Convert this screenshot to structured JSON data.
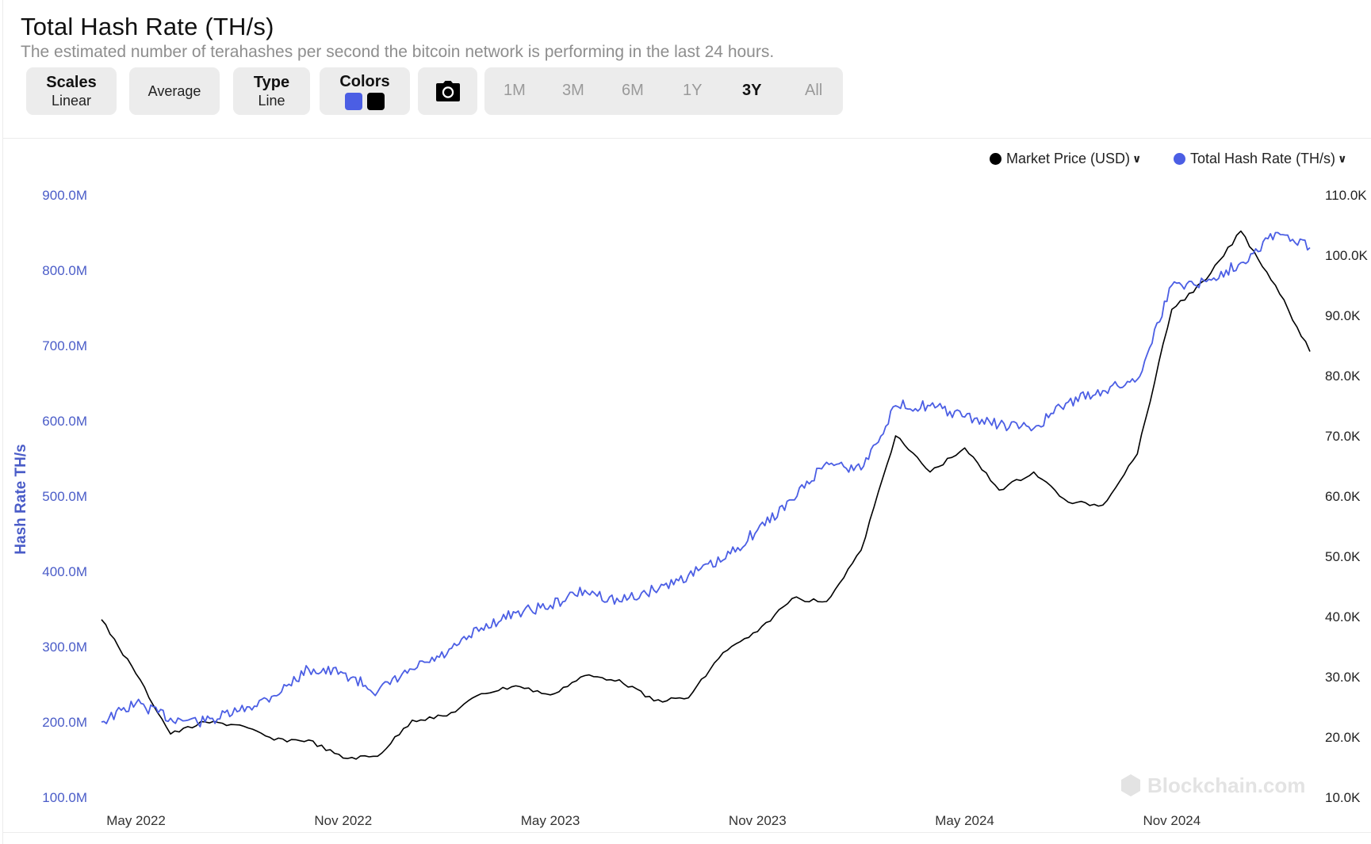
{
  "header": {
    "title": "Total Hash Rate (TH/s)",
    "subtitle": "The estimated number of terahashes per second the bitcoin network is performing in the last 24 hours."
  },
  "toolbar": {
    "scales_label": "Scales",
    "scales_value": "Linear",
    "average_label": "Average",
    "type_label": "Type",
    "type_value": "Line",
    "colors_label": "Colors",
    "color_primary": "#4b5ee4",
    "color_secondary": "#000000",
    "camera_icon": "camera-icon",
    "ranges": [
      "1M",
      "3M",
      "6M",
      "1Y",
      "3Y",
      "All"
    ],
    "active_range": "3Y"
  },
  "legend": {
    "market_price": "Market Price (USD)",
    "hash_rate": "Total Hash Rate (TH/s)"
  },
  "watermark": "Blockchain.com",
  "chart_data": {
    "type": "line",
    "ylabel": "Hash Rate TH/s",
    "x_tick_labels": [
      "May 2022",
      "Nov 2022",
      "May 2023",
      "Nov 2023",
      "May 2024",
      "Nov 2024"
    ],
    "y_left_ticks": [
      "100.0M",
      "200.0M",
      "300.0M",
      "400.0M",
      "500.0M",
      "600.0M",
      "700.0M",
      "800.0M",
      "900.0M"
    ],
    "y_left_range": [
      100,
      900
    ],
    "y_right_ticks": [
      "10.0K",
      "20.0K",
      "30.0K",
      "40.0K",
      "50.0K",
      "60.0K",
      "70.0K",
      "80.0K",
      "90.0K",
      "100.0K",
      "110.0K"
    ],
    "y_right_range": [
      10,
      110
    ],
    "x": [
      "2022-04",
      "2022-05",
      "2022-06",
      "2022-07",
      "2022-08",
      "2022-09",
      "2022-10",
      "2022-11",
      "2022-12",
      "2023-01",
      "2023-02",
      "2023-03",
      "2023-04",
      "2023-05",
      "2023-06",
      "2023-07",
      "2023-08",
      "2023-09",
      "2023-10",
      "2023-11",
      "2023-12",
      "2024-01",
      "2024-02",
      "2024-03",
      "2024-04",
      "2024-05",
      "2024-06",
      "2024-07",
      "2024-08",
      "2024-09",
      "2024-10",
      "2024-11",
      "2024-12",
      "2025-01",
      "2025-02",
      "2025-03"
    ],
    "series": [
      {
        "name": "Total Hash Rate (TH/s)",
        "axis": "left",
        "color": "#4b5ee4",
        "unit": "M",
        "values": [
          200,
          225,
          205,
          200,
          215,
          235,
          270,
          265,
          240,
          270,
          290,
          325,
          345,
          355,
          375,
          360,
          375,
          395,
          415,
          455,
          495,
          545,
          535,
          620,
          620,
          605,
          595,
          590,
          625,
          640,
          655,
          780,
          785,
          810,
          850,
          830
        ]
      },
      {
        "name": "Market Price (USD)",
        "axis": "right",
        "color": "#000000",
        "unit": "K",
        "values": [
          39.5,
          30.5,
          20.5,
          22.5,
          22.0,
          19.5,
          19.5,
          16.5,
          16.8,
          22.8,
          23.5,
          27.2,
          28.5,
          27.0,
          30.2,
          29.5,
          26.0,
          26.5,
          34.0,
          37.5,
          43.0,
          42.5,
          51.0,
          70.0,
          64.0,
          68.0,
          61.0,
          64.0,
          59.0,
          58.5,
          67.0,
          91.0,
          96.0,
          104.0,
          95.0,
          84.0
        ]
      }
    ]
  }
}
